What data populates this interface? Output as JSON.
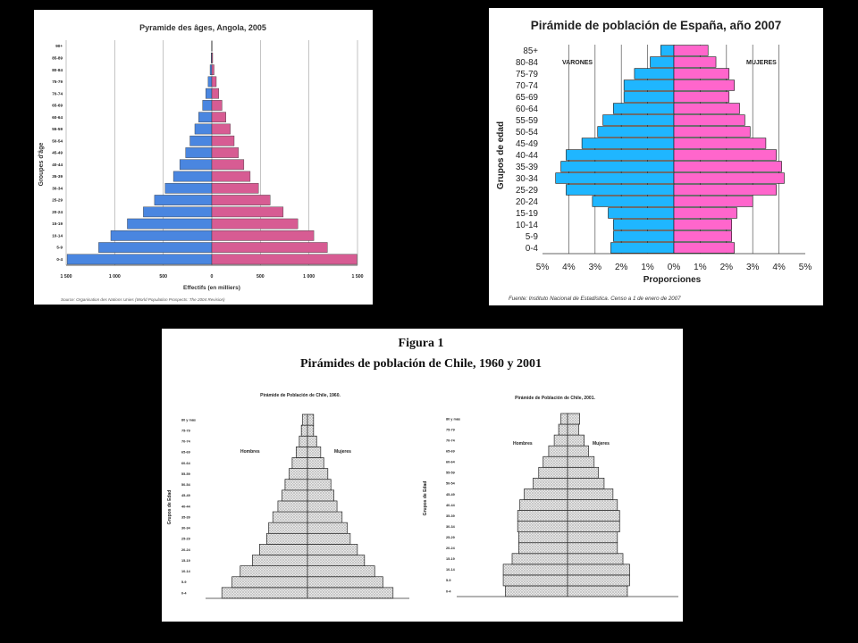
{
  "colors": {
    "background": "#000000",
    "angola_male": "#4a86e0",
    "angola_female": "#d75c93",
    "spain_male": "#1fb6ff",
    "spain_female": "#ff66cc",
    "chile_bar_fill": "#e6e6e6"
  },
  "icons": {
    "male": "male-symbol-icon",
    "female": "female-symbol-icon"
  },
  "angola": {
    "title": "Pyramide des âges, Angola, 2005",
    "ylabel": "Groupes d'âge",
    "xlabel": "Effectifs (en milliers)",
    "source": "Source: Organisation des Nations Unies (World Population Prospects: The 2004 Revision)"
  },
  "spain": {
    "title": "Pirámide de población de España, año 2007",
    "ylabel": "Grupos de edad",
    "xlabel": "Proporciones",
    "legend_male": "VARONES",
    "legend_female": "MUJERES",
    "source": "Fuente: Instituto Nacional de Estadística. Censo a 1 de enero de 2007"
  },
  "chile": {
    "heading1": "Figura 1",
    "heading2": "Pirámides de población de Chile, 1960 y 2001",
    "title_1960": "Pirámide de Población de Chile, 1960.",
    "title_2001": "Pirámide de Población de Chile, 2001.",
    "men_1960": "Hombres",
    "women_1960": "Mujeres",
    "men_2001": "Hombres",
    "women_2001": "Mujeres",
    "ylabel": "Grupos de Edad"
  },
  "chart_data": [
    {
      "type": "bar",
      "orientation": "horizontal-pyramid",
      "title": "Pyramide des âges, Angola, 2005",
      "xlabel": "Effectifs (en milliers)",
      "ylabel": "Groupes d'âge",
      "xlim": [
        -1500,
        1500
      ],
      "xticks": [
        "1 500",
        "1 000",
        "500",
        "0",
        "500",
        "1 000",
        "1 500"
      ],
      "categories": [
        "0-4",
        "5-9",
        "10-14",
        "15-19",
        "20-24",
        "25-29",
        "30-34",
        "35-39",
        "40-44",
        "45-49",
        "50-54",
        "55-59",
        "60-64",
        "65-69",
        "70-74",
        "75-79",
        "80-84",
        "85-89",
        "90+"
      ],
      "series": [
        {
          "name": "♂",
          "values": [
            1490,
            1165,
            1040,
            870,
            705,
            590,
            480,
            395,
            330,
            270,
            225,
            175,
            135,
            95,
            62,
            38,
            18,
            7,
            2
          ]
        },
        {
          "name": "♀",
          "values": [
            1495,
            1190,
            1050,
            885,
            735,
            600,
            480,
            395,
            330,
            275,
            230,
            190,
            145,
            105,
            72,
            46,
            23,
            9,
            3
          ]
        }
      ],
      "grid": true
    },
    {
      "type": "bar",
      "orientation": "horizontal-pyramid",
      "title": "Pirámide de población de España, año 2007",
      "xlabel": "Proporciones",
      "ylabel": "Grupos de edad",
      "xlim": [
        -5,
        5
      ],
      "xticks": [
        "5%",
        "4%",
        "3%",
        "2%",
        "1%",
        "0%",
        "1%",
        "2%",
        "3%",
        "4%",
        "5%"
      ],
      "categories": [
        "0-4",
        "5-9",
        "10-14",
        "15-19",
        "20-24",
        "25-29",
        "30-34",
        "35-39",
        "40-44",
        "45-49",
        "50-54",
        "55-59",
        "60-64",
        "65-69",
        "70-74",
        "75-79",
        "80-84",
        "85+"
      ],
      "series": [
        {
          "name": "VARONES",
          "values": [
            2.4,
            2.3,
            2.3,
            2.5,
            3.1,
            4.1,
            4.5,
            4.3,
            4.1,
            3.5,
            2.9,
            2.7,
            2.3,
            1.9,
            1.9,
            1.5,
            0.9,
            0.5
          ]
        },
        {
          "name": "MUJERES",
          "values": [
            2.3,
            2.2,
            2.2,
            2.4,
            3.0,
            3.9,
            4.2,
            4.1,
            3.9,
            3.5,
            2.9,
            2.7,
            2.5,
            2.1,
            2.3,
            2.1,
            1.6,
            1.3
          ]
        }
      ],
      "grid": true
    },
    {
      "type": "bar",
      "orientation": "horizontal-pyramid",
      "title": "Pirámide de Población de Chile, 1960.",
      "ylabel": "Grupos de Edad",
      "categories": [
        "0-4",
        "5-9",
        "10-14",
        "15-19",
        "20-24",
        "25-29",
        "30-34",
        "35-39",
        "40-44",
        "45-49",
        "50-54",
        "55-59",
        "60-64",
        "65-69",
        "70-74",
        "75-79",
        "80 y más"
      ],
      "series": [
        {
          "name": "Hombres",
          "values": [
            8.4,
            7.4,
            6.6,
            5.4,
            4.7,
            4.0,
            3.8,
            3.4,
            2.9,
            2.5,
            2.2,
            1.8,
            1.5,
            1.1,
            0.8,
            0.6,
            0.5
          ]
        },
        {
          "name": "Mujeres",
          "values": [
            8.4,
            7.4,
            6.6,
            5.6,
            4.9,
            4.2,
            3.9,
            3.4,
            2.9,
            2.6,
            2.3,
            2.0,
            1.6,
            1.3,
            0.9,
            0.6,
            0.6
          ]
        }
      ]
    },
    {
      "type": "bar",
      "orientation": "horizontal-pyramid",
      "title": "Pirámide de Población de Chile, 2001.",
      "ylabel": "Grupos de Edad",
      "categories": [
        "0-4",
        "5-9",
        "10-14",
        "15-19",
        "20-24",
        "25-29",
        "30-34",
        "35-39",
        "40-44",
        "45-49",
        "50-54",
        "55-59",
        "60-64",
        "65-69",
        "70-74",
        "75-79",
        "80 y más"
      ],
      "series": [
        {
          "name": "Hombres",
          "values": [
            5.6,
            5.8,
            5.8,
            5.0,
            4.4,
            4.4,
            4.5,
            4.5,
            4.3,
            3.9,
            3.1,
            2.6,
            2.2,
            1.7,
            1.2,
            0.8,
            0.6
          ]
        },
        {
          "name": "Mujeres",
          "values": [
            5.4,
            5.6,
            5.6,
            5.0,
            4.5,
            4.5,
            4.7,
            4.7,
            4.5,
            4.1,
            3.3,
            2.8,
            2.4,
            1.9,
            1.5,
            1.0,
            1.1
          ]
        }
      ]
    }
  ]
}
